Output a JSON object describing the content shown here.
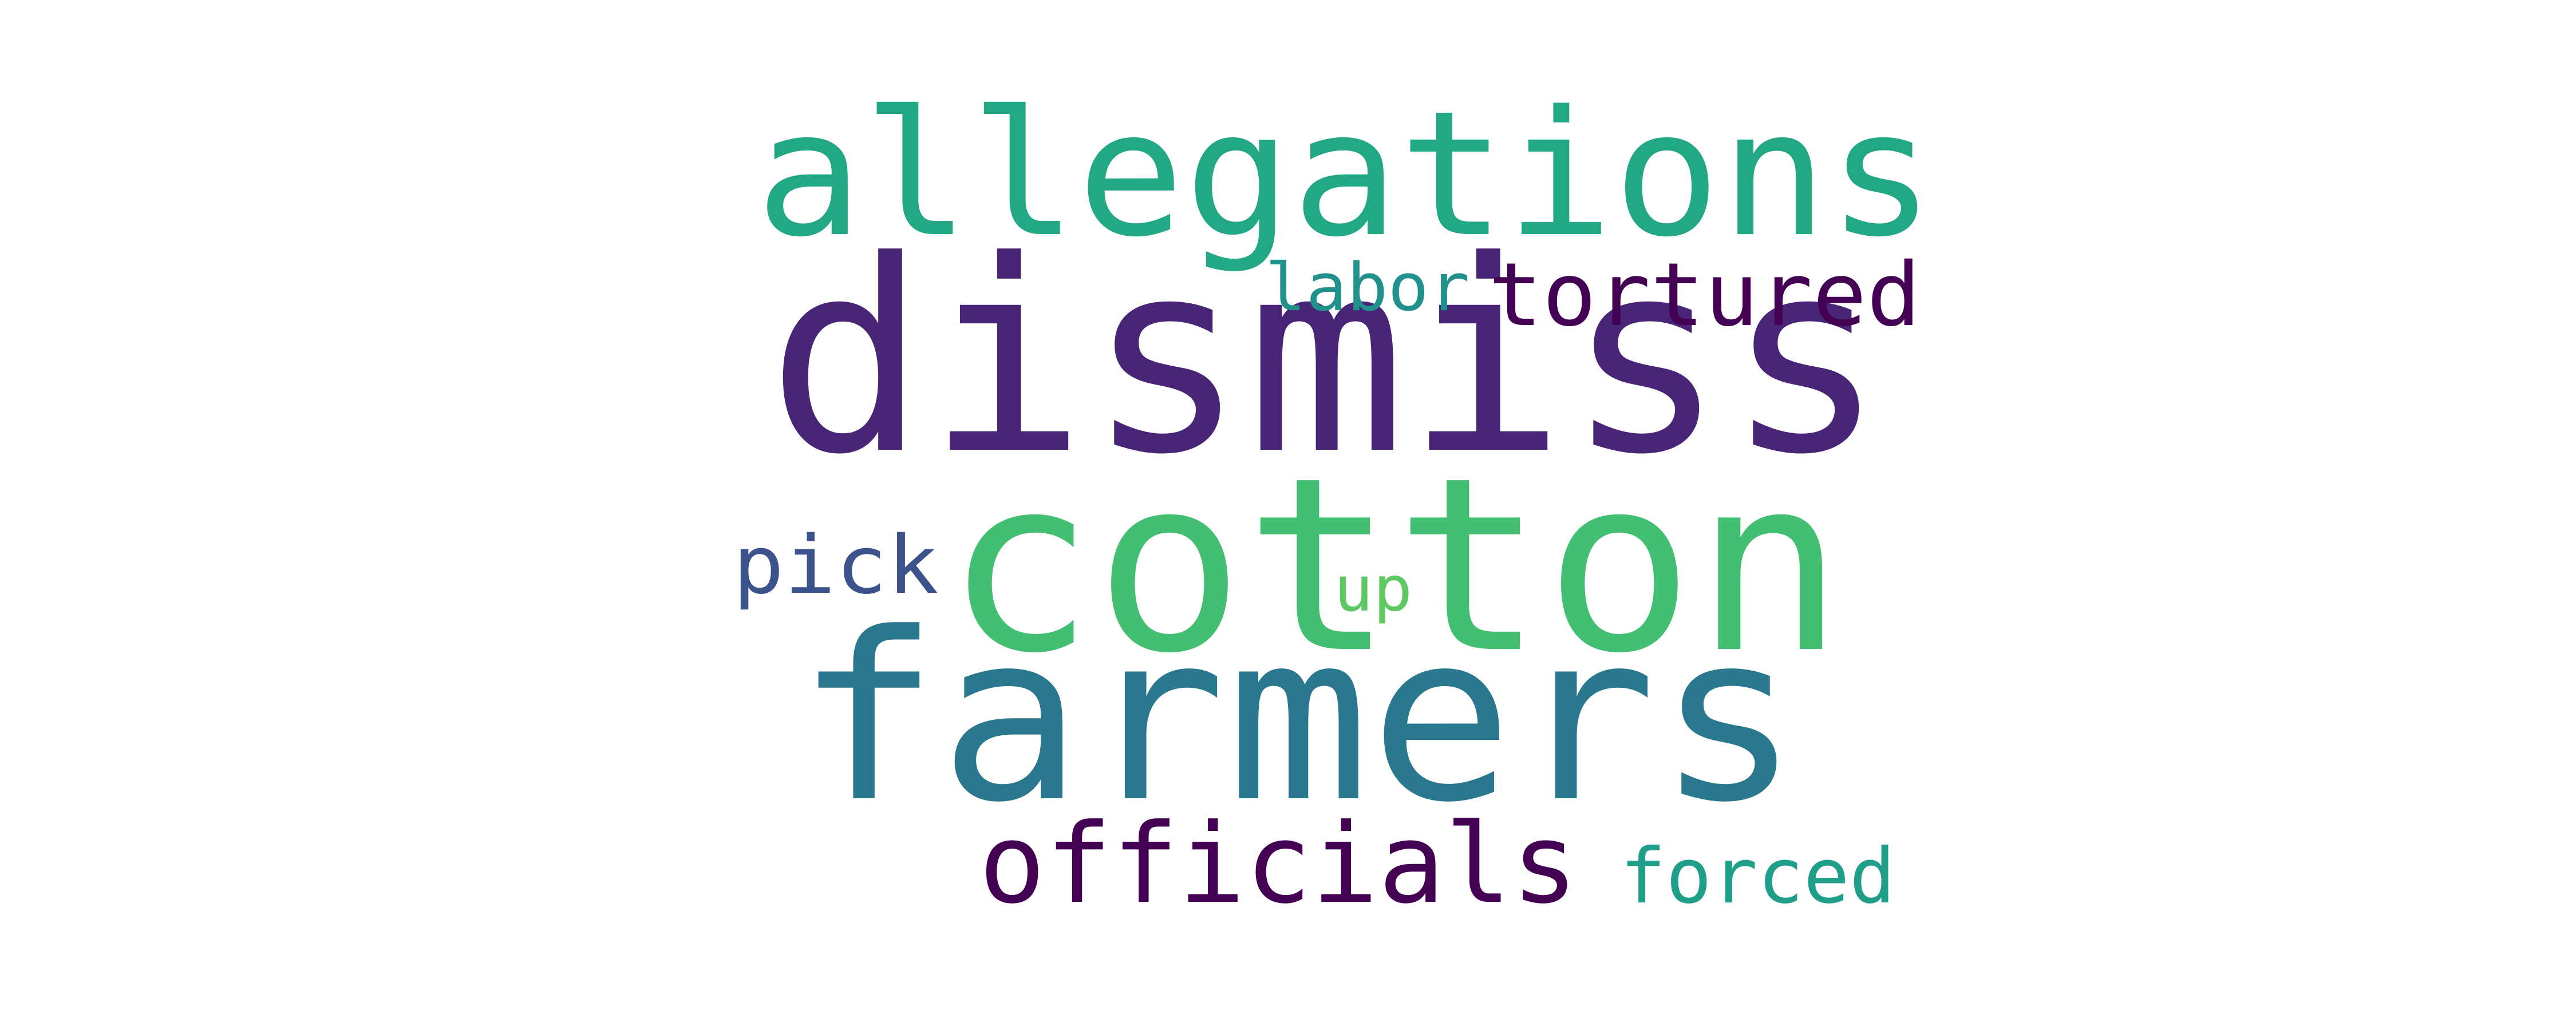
{
  "words": {
    "dismiss": {
      "text": "dismiss",
      "color": "#482576"
    },
    "cotton": {
      "text": "cotton",
      "color": "#43bf71"
    },
    "farmers": {
      "text": "farmers",
      "color": "#2a788e"
    },
    "allegations": {
      "text": "allegations",
      "color": "#22a884"
    },
    "tortured": {
      "text": "tortured",
      "color": "#440154"
    },
    "officials": {
      "text": "officials",
      "color": "#440154"
    },
    "forced": {
      "text": "forced",
      "color": "#1f9e89"
    },
    "labor": {
      "text": "labor",
      "color": "#21918c"
    },
    "pick": {
      "text": "pick",
      "color": "#3b528b"
    },
    "up": {
      "text": "up",
      "color": "#5ec962"
    }
  }
}
